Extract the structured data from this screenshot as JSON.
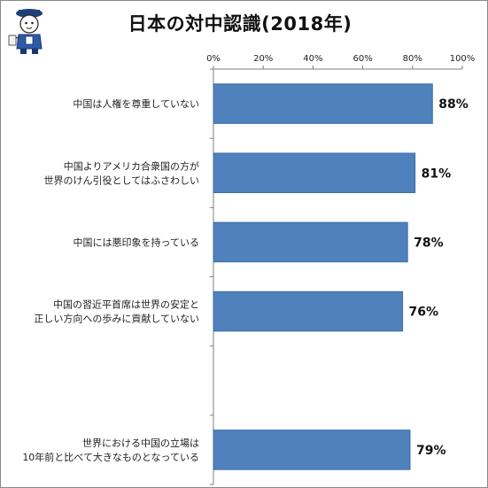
{
  "header": {
    "title": "日本の対中認識(2018年)",
    "mascot_icon": "mascot-character-icon"
  },
  "colors": {
    "bar": "#4f81bd",
    "bar_stroke": "#3a6ea5",
    "axis": "#7f7f7f"
  },
  "chart_data": {
    "type": "bar",
    "orientation": "horizontal",
    "title": "日本の対中認識(2018年)",
    "xlabel": "",
    "ylabel": "",
    "xlim": [
      0,
      100
    ],
    "tick_values": [
      0,
      20,
      40,
      60,
      80,
      100
    ],
    "tick_labels": [
      "0%",
      "20%",
      "40%",
      "60%",
      "80%",
      "100%"
    ],
    "grid": false,
    "legend": "none",
    "categories": [
      [
        "中国は人権を尊重していない"
      ],
      [
        "中国よりアメリカ合衆国の方が",
        "世界のけん引役としてはふさわしい"
      ],
      [
        "中国には悪印象を持っている"
      ],
      [
        "中国の習近平首席は世界の安定と",
        "正しい方向への歩みに貢献していない"
      ],
      [
        ""
      ],
      [
        "世界における中国の立場は",
        "10年前と比べて大きなものとなっている"
      ]
    ],
    "values": [
      88,
      81,
      78,
      76,
      null,
      79
    ],
    "value_labels": [
      "88%",
      "81%",
      "78%",
      "76%",
      "",
      "79%"
    ]
  }
}
